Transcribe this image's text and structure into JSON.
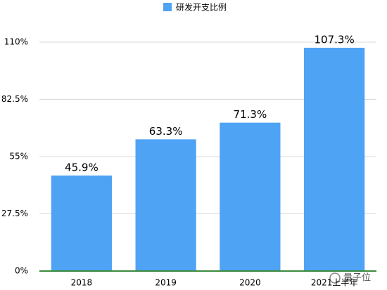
{
  "chart_data": {
    "type": "bar",
    "legend": "研发开支比例",
    "categories": [
      "2018",
      "2019",
      "2020",
      "2021上半年"
    ],
    "values": [
      45.9,
      63.3,
      71.3,
      107.3
    ],
    "value_labels": [
      "45.9%",
      "63.3%",
      "71.3%",
      "107.3%"
    ],
    "color": "#4ea3f5",
    "ylim": [
      0,
      110
    ],
    "yticks": [
      {
        "value": 0,
        "label": "0%"
      },
      {
        "value": 27.5,
        "label": "27.5%"
      },
      {
        "value": 55,
        "label": "55%"
      },
      {
        "value": 82.5,
        "label": "82.5%"
      },
      {
        "value": 110,
        "label": "110%"
      }
    ],
    "grid": true
  },
  "watermark": "量子位"
}
